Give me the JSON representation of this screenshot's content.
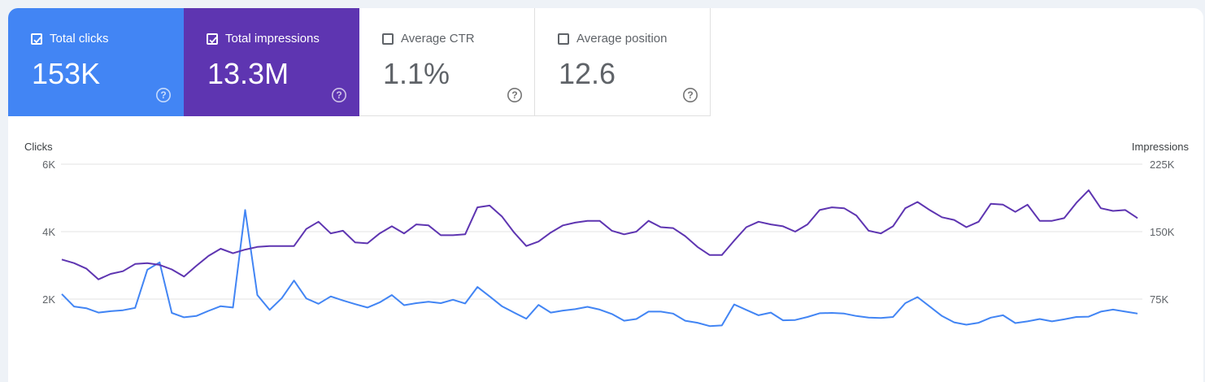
{
  "metrics": [
    {
      "id": "clicks",
      "label": "Total clicks",
      "value": "153K",
      "checked": true,
      "color": "#4285f4"
    },
    {
      "id": "impressions",
      "label": "Total impressions",
      "value": "13.3M",
      "checked": true,
      "color": "#5e35b1"
    },
    {
      "id": "ctr",
      "label": "Average CTR",
      "value": "1.1%",
      "checked": false
    },
    {
      "id": "position",
      "label": "Average position",
      "value": "12.6",
      "checked": false
    }
  ],
  "chart_data": {
    "type": "line",
    "left_axis": {
      "title": "Clicks",
      "ticks": [
        "6K",
        "4K",
        "2K"
      ],
      "range": [
        0,
        6000
      ]
    },
    "right_axis": {
      "title": "Impressions",
      "ticks": [
        "225K",
        "150K",
        "75K"
      ],
      "range": [
        0,
        225000
      ]
    },
    "grid": true,
    "series": [
      {
        "axis": "left",
        "color": "#4285f4",
        "values": [
          2150,
          1780,
          1730,
          1600,
          1640,
          1670,
          1740,
          2870,
          3090,
          1590,
          1460,
          1500,
          1650,
          1790,
          1750,
          4640,
          2120,
          1680,
          2030,
          2550,
          2020,
          1860,
          2080,
          1960,
          1850,
          1750,
          1900,
          2120,
          1820,
          1880,
          1920,
          1880,
          1980,
          1870,
          2360,
          2080,
          1790,
          1600,
          1420,
          1830,
          1600,
          1660,
          1700,
          1770,
          1690,
          1560,
          1360,
          1410,
          1630,
          1630,
          1570,
          1360,
          1300,
          1200,
          1220,
          1840,
          1680,
          1520,
          1600,
          1370,
          1380,
          1470,
          1580,
          1590,
          1570,
          1500,
          1450,
          1440,
          1470,
          1880,
          2060,
          1780,
          1500,
          1310,
          1240,
          1300,
          1450,
          1520,
          1290,
          1340,
          1410,
          1340,
          1400,
          1470,
          1480,
          1630,
          1690,
          1630,
          1570
        ]
      },
      {
        "axis": "right",
        "color": "#5e35b1",
        "values": [
          119000,
          115000,
          109000,
          97000,
          103000,
          106000,
          114000,
          115000,
          113000,
          108000,
          100000,
          112000,
          123000,
          131000,
          126000,
          130000,
          133000,
          134000,
          134000,
          134000,
          153000,
          161000,
          148000,
          151000,
          138000,
          137000,
          148000,
          156000,
          148000,
          158000,
          157000,
          146000,
          146000,
          147000,
          177000,
          179000,
          167000,
          149000,
          134000,
          139000,
          149000,
          157000,
          160000,
          162000,
          162000,
          151000,
          147000,
          150000,
          162000,
          155000,
          154000,
          145000,
          133000,
          124000,
          124000,
          140000,
          155000,
          161000,
          158000,
          156000,
          150000,
          158000,
          174000,
          177000,
          176000,
          168000,
          151000,
          148000,
          156000,
          176000,
          183000,
          174000,
          166000,
          163000,
          155000,
          161000,
          181000,
          180000,
          172000,
          180000,
          162000,
          162000,
          165000,
          182000,
          196000,
          176000,
          173000,
          174000,
          165000
        ]
      }
    ]
  }
}
